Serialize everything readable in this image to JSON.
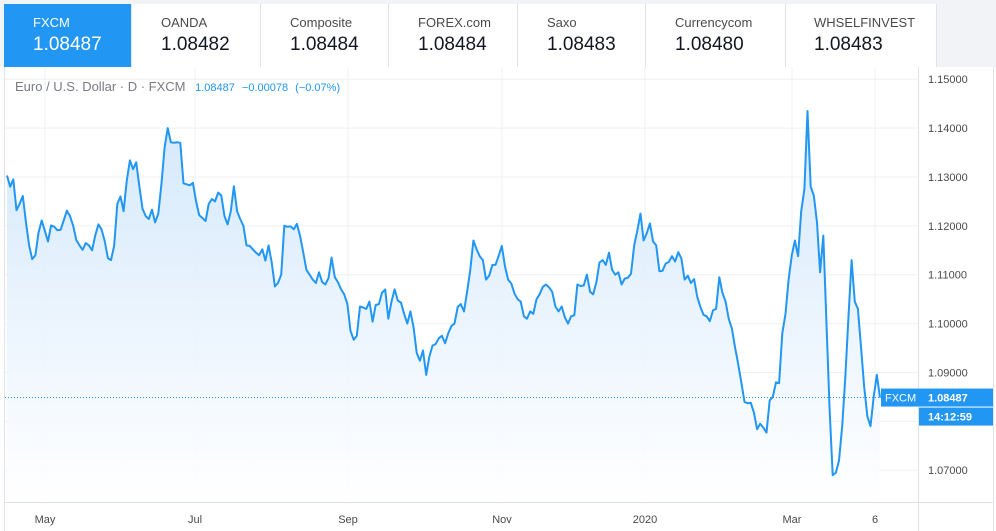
{
  "tabs": [
    {
      "name": "FXCM",
      "price": "1.08487",
      "active": true
    },
    {
      "name": "OANDA",
      "price": "1.08482",
      "active": false
    },
    {
      "name": "Composite",
      "price": "1.08484",
      "active": false
    },
    {
      "name": "FOREX.com",
      "price": "1.08484",
      "active": false
    },
    {
      "name": "Saxo",
      "price": "1.08483",
      "active": false
    },
    {
      "name": "Currencycom",
      "price": "1.08480",
      "active": false
    },
    {
      "name": "WHSELFINVEST",
      "price": "1.08483",
      "active": false
    }
  ],
  "legend": {
    "symbol": "Euro / U.S. Dollar · D · FXCM",
    "last": "1.08487",
    "change": "−0.00078",
    "change_pct": "(−0.07%)"
  },
  "colors": {
    "accent": "#2196f3",
    "line": "#2196f3",
    "area_top": "#cfe6fb",
    "area_bottom": "#ffffff",
    "grid": "#eef0f3",
    "axis_text": "#4a4a4a"
  },
  "price_tag": {
    "label": "FXCM",
    "price": "1.08487",
    "time": "14:12:59"
  },
  "chart_data": {
    "type": "area",
    "title": "",
    "xlabel": "",
    "ylabel": "",
    "ylim": [
      1.0635,
      1.1525
    ],
    "x_tick_labels": [
      "May",
      "Jul",
      "Sep",
      "Nov",
      "2020",
      "Mar",
      "6"
    ],
    "y_tick_labels": [
      "1.15000",
      "1.14000",
      "1.13000",
      "1.12000",
      "1.11000",
      "1.10000",
      "1.09000",
      "1.08000",
      "1.07000"
    ],
    "y_ticks": [
      1.15,
      1.14,
      1.13,
      1.12,
      1.11,
      1.1,
      1.09,
      1.08,
      1.07
    ],
    "grid": true,
    "last_value": 1.08487,
    "values": [
      1.1303,
      1.128,
      1.1295,
      1.1232,
      1.1245,
      1.1261,
      1.1208,
      1.116,
      1.1132,
      1.114,
      1.1186,
      1.1211,
      1.119,
      1.1168,
      1.1201,
      1.1198,
      1.1191,
      1.1192,
      1.1211,
      1.1231,
      1.122,
      1.12,
      1.1171,
      1.116,
      1.1151,
      1.1165,
      1.116,
      1.115,
      1.118,
      1.1203,
      1.1193,
      1.1169,
      1.1134,
      1.113,
      1.116,
      1.1245,
      1.126,
      1.123,
      1.1293,
      1.1334,
      1.1316,
      1.133,
      1.128,
      1.1235,
      1.122,
      1.1214,
      1.1233,
      1.1207,
      1.1225,
      1.1285,
      1.136,
      1.14,
      1.1371,
      1.137,
      1.1371,
      1.137,
      1.1287,
      1.1285,
      1.1283,
      1.1288,
      1.125,
      1.1222,
      1.1216,
      1.121,
      1.1245,
      1.1255,
      1.125,
      1.1268,
      1.1262,
      1.122,
      1.1203,
      1.123,
      1.1281,
      1.123,
      1.1214,
      1.12,
      1.116,
      1.1159,
      1.1152,
      1.1145,
      1.114,
      1.1152,
      1.1129,
      1.116,
      1.1125,
      1.1076,
      1.1083,
      1.11,
      1.12,
      1.1198,
      1.1199,
      1.1193,
      1.1204,
      1.1179,
      1.1145,
      1.111,
      1.11,
      1.109,
      1.1083,
      1.1105,
      1.1085,
      1.108,
      1.1093,
      1.1135,
      1.1095,
      1.1085,
      1.107,
      1.106,
      1.104,
      1.0985,
      1.0967,
      1.0975,
      1.1035,
      1.1033,
      1.103,
      1.1045,
      1.1004,
      1.1038,
      1.104,
      1.1063,
      1.107,
      1.101,
      1.1045,
      1.107,
      1.1047,
      1.1043,
      1.102,
      1.1,
      1.1025,
      1.0992,
      1.094,
      1.0924,
      1.0945,
      1.0895,
      1.0932,
      1.0955,
      1.0958,
      1.097,
      1.0975,
      1.096,
      1.098,
      1.0995,
      1.1,
      1.1034,
      1.104,
      1.1025,
      1.1065,
      1.111,
      1.117,
      1.1152,
      1.1138,
      1.113,
      1.109,
      1.1098,
      1.112,
      1.112,
      1.1139,
      1.1159,
      1.1117,
      1.109,
      1.1082,
      1.1062,
      1.105,
      1.1045,
      1.1015,
      1.101,
      1.1025,
      1.102,
      1.105,
      1.106,
      1.1075,
      1.108,
      1.1074,
      1.1065,
      1.1035,
      1.1025,
      1.1035,
      1.1013,
      1.1,
      1.1015,
      1.1017,
      1.108,
      1.1077,
      1.1078,
      1.11,
      1.1065,
      1.106,
      1.1085,
      1.1125,
      1.113,
      1.112,
      1.1145,
      1.111,
      1.11,
      1.1105,
      1.108,
      1.1092,
      1.1094,
      1.1102,
      1.116,
      1.119,
      1.1225,
      1.117,
      1.1185,
      1.1205,
      1.1168,
      1.116,
      1.1107,
      1.1108,
      1.1123,
      1.1126,
      1.1138,
      1.1127,
      1.1146,
      1.1133,
      1.109,
      1.1098,
      1.1083,
      1.1091,
      1.1055,
      1.1034,
      1.1018,
      1.1015,
      1.1005,
      1.1027,
      1.103,
      1.1095,
      1.1063,
      1.1045,
      1.101,
      1.099,
      1.0952,
      1.0917,
      1.088,
      1.084,
      1.0837,
      1.0838,
      1.0818,
      1.0784,
      1.0795,
      1.0787,
      1.0777,
      1.0843,
      1.085,
      1.088,
      1.0878,
      1.098,
      1.102,
      1.109,
      1.114,
      1.117,
      1.1138,
      1.123,
      1.1275,
      1.1435,
      1.128,
      1.1262,
      1.1207,
      1.1105,
      1.118,
      1.1005,
      1.0825,
      1.069,
      1.0695,
      1.072,
      1.079,
      1.089,
      1.1015,
      1.113,
      1.1045,
      1.103,
      1.095,
      1.087,
      1.081,
      1.079,
      1.085,
      1.0895,
      1.08487
    ]
  }
}
